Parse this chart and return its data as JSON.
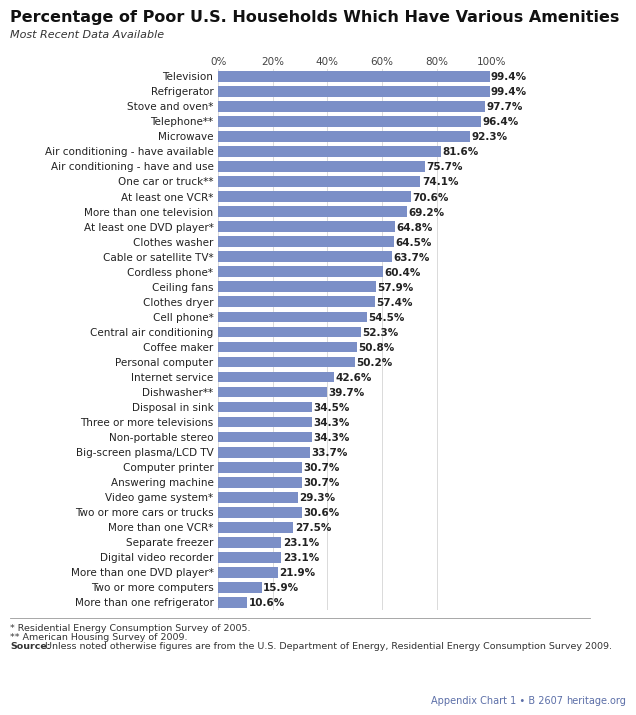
{
  "title": "Percentage of Poor U.S. Households Which Have Various Amenities",
  "subtitle": "Most Recent Data Available",
  "categories": [
    "Television",
    "Refrigerator",
    "Stove and oven*",
    "Telephone**",
    "Microwave",
    "Air conditioning - have available",
    "Air conditioning - have and use",
    "One car or truck**",
    "At least one VCR*",
    "More than one television",
    "At least one DVD player*",
    "Clothes washer",
    "Cable or satellite TV*",
    "Cordless phone*",
    "Ceiling fans",
    "Clothes dryer",
    "Cell phone*",
    "Central air conditioning",
    "Coffee maker",
    "Personal computer",
    "Internet service",
    "Dishwasher**",
    "Disposal in sink",
    "Three or more televisions",
    "Non-portable stereo",
    "Big-screen plasma/LCD TV",
    "Computer printer",
    "Answering machine",
    "Video game system*",
    "Two or more cars or trucks",
    "More than one VCR*",
    "Separate freezer",
    "Digital video recorder",
    "More than one DVD player*",
    "Two or more computers",
    "More than one refrigerator"
  ],
  "values": [
    99.4,
    99.4,
    97.7,
    96.4,
    92.3,
    81.6,
    75.7,
    74.1,
    70.6,
    69.2,
    64.8,
    64.5,
    63.7,
    60.4,
    57.9,
    57.4,
    54.5,
    52.3,
    50.8,
    50.2,
    42.6,
    39.7,
    34.5,
    34.3,
    34.3,
    33.7,
    30.7,
    30.7,
    29.3,
    30.6,
    27.5,
    23.1,
    23.1,
    21.9,
    15.9,
    10.6
  ],
  "bar_color": "#7b8fc7",
  "bg_color": "#ffffff",
  "footnote1": "* Residential Energy Consumption Survey of 2005.",
  "footnote2": "** American Housing Survey of 2009.",
  "footnote3_source": "Source:",
  "footnote3_rest": " Unless noted otherwise figures are from the U.S. Department of Energy, Residential Energy Consumption Survey 2009.",
  "footer_right1": "Appendix Chart 1 • B 2607",
  "footer_right2": "heritage.org",
  "xlabel_ticks": [
    0,
    20,
    40,
    60,
    80,
    100
  ],
  "xlabel_labels": [
    "0%",
    "20%",
    "40%",
    "60%",
    "80%",
    "100%"
  ],
  "title_fontsize": 11.5,
  "subtitle_fontsize": 8,
  "label_fontsize": 7.5,
  "value_fontsize": 7.5,
  "tick_fontsize": 7.5,
  "footnote_fontsize": 6.8
}
